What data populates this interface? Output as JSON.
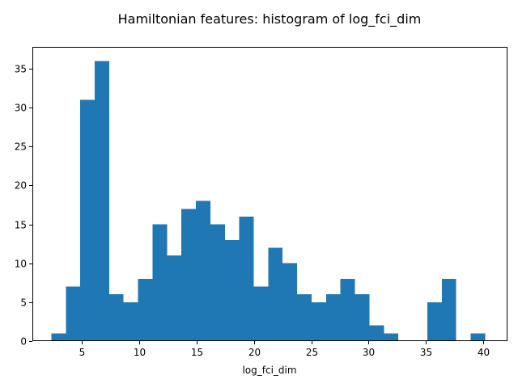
{
  "chart_data": {
    "type": "bar",
    "title": "Hamiltonian features: histogram of log_fci_dim",
    "xlabel": "log_fci_dim",
    "ylabel": "",
    "bar_color": "#1f77b4",
    "xlim": [
      0.7,
      42.1
    ],
    "ylim": [
      0,
      37.8
    ],
    "xticks": [
      5,
      10,
      15,
      20,
      25,
      30,
      35,
      40
    ],
    "yticks": [
      0,
      5,
      10,
      15,
      20,
      25,
      30,
      35
    ],
    "bin_start": 2.35,
    "bin_width": 1.26,
    "values": [
      1,
      7,
      31,
      36,
      6,
      5,
      8,
      15,
      11,
      17,
      18,
      15,
      13,
      16,
      7,
      12,
      10,
      6,
      5,
      6,
      8,
      6,
      2,
      1,
      0,
      0,
      5,
      8,
      0,
      1
    ]
  }
}
